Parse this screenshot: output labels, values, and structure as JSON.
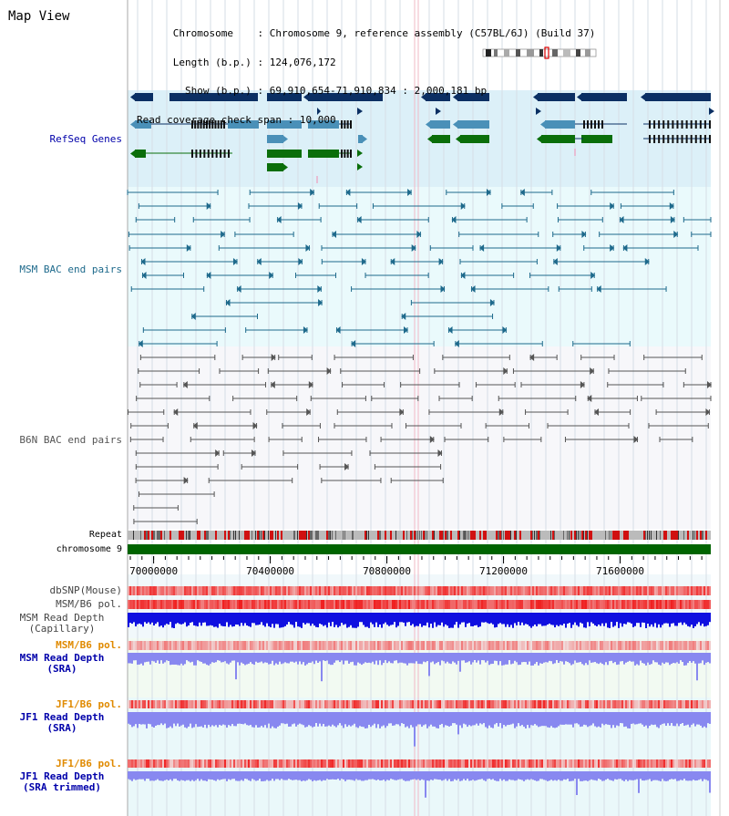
{
  "view": {
    "title": "Map View",
    "chromosome_key": "Chromosome",
    "chromosome_val": "Chromosome 9, reference assembly (C57BL/6J) (Build 37)",
    "length_key": "Length (b.p.)",
    "length_val": "124,076,172",
    "show_key": "Show (b.p.)",
    "show_val": "69,910,654-71,910,834 : 2,000,181 bp",
    "coverage_key": "Read coverage check span",
    "coverage_val": "10,000"
  },
  "tracks": {
    "refseq": "RefSeq Genes",
    "msm_bac": "MSM BAC end pairs",
    "b6n_bac": "B6N BAC end pairs",
    "repeat": "Repeat",
    "chromosome": "chromosome 9",
    "dbsnp": "dbSNP(Mouse)",
    "msm_b6_pol1": "MSM/B6 pol.",
    "msm_depth_cap_1": "MSM Read Depth",
    "msm_depth_cap_2": "(Capillary)",
    "msm_b6_pol2": "MSM/B6 pol.",
    "msm_depth_sra_1": "MSM Read Depth",
    "msm_depth_sra_2": "(SRA)",
    "jf1_pol1": "JF1/B6 pol.",
    "jf1_depth_sra_1": "JF1 Read Depth",
    "jf1_depth_sra_2": "(SRA)",
    "jf1_pol2": "JF1/B6 pol.",
    "jf1_depth_trim_1": "JF1 Read Depth",
    "jf1_depth_trim_2": "(SRA trimmed)"
  },
  "axis": {
    "ticks": [
      70000000,
      70400000,
      70800000,
      71200000,
      71600000
    ],
    "range": [
      69910654,
      71910834
    ]
  },
  "colors": {
    "gene_dark": "#0b2f63",
    "gene_mid": "#4a90b8",
    "gene_green": "#0a6e0a",
    "msm_line": "#1e6a8c",
    "b6n_line": "#555555",
    "depth_cap": "#1010e0",
    "depth_sra": "#8888f0",
    "label_blue": "#0000aa",
    "label_orange": "#e08a00"
  }
}
